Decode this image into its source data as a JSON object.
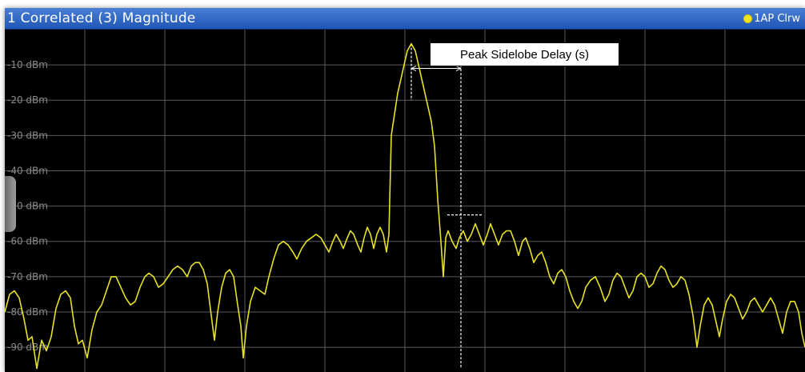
{
  "window": {
    "title": "1 Correlated (3) Magnitude",
    "trace_label": "1AP Clrw"
  },
  "annotation": {
    "label": "Peak Sidelobe Delay (s)"
  },
  "colors": {
    "trace": "#e6e225",
    "titlebar": "#2a62c4",
    "grid": "#5a5a5a",
    "background": "#000000"
  },
  "chart_data": {
    "type": "line",
    "title": "1 Correlated (3) Magnitude",
    "xlabel": "",
    "ylabel": "",
    "y_unit": "dBm",
    "ylim": [
      -97,
      0
    ],
    "xlim": [
      0,
      100
    ],
    "y_ticks": [
      "-10 dBm",
      "-20 dBm",
      "-30 dBm",
      "-40 dBm",
      "-50 dBm",
      "-60 dBm",
      "-70 dBm",
      "-80 dBm",
      "-90 dBm"
    ],
    "y_tick_values": [
      -10,
      -20,
      -30,
      -40,
      -50,
      -60,
      -70,
      -80,
      -90
    ],
    "grid": true,
    "series": [
      {
        "name": "1AP Clrw",
        "points": [
          [
            0.0,
            -80
          ],
          [
            0.6,
            -75
          ],
          [
            1.2,
            -74
          ],
          [
            1.8,
            -76
          ],
          [
            2.4,
            -82
          ],
          [
            2.9,
            -88
          ],
          [
            3.4,
            -87
          ],
          [
            4.0,
            -96
          ],
          [
            4.6,
            -88
          ],
          [
            5.2,
            -91
          ],
          [
            5.8,
            -87
          ],
          [
            6.4,
            -79
          ],
          [
            7.0,
            -75
          ],
          [
            7.6,
            -74
          ],
          [
            8.2,
            -76
          ],
          [
            8.7,
            -84
          ],
          [
            9.2,
            -89
          ],
          [
            9.7,
            -88
          ],
          [
            10.3,
            -93
          ],
          [
            10.9,
            -85
          ],
          [
            11.5,
            -80
          ],
          [
            12.1,
            -78
          ],
          [
            12.7,
            -74
          ],
          [
            13.3,
            -70
          ],
          [
            13.9,
            -70
          ],
          [
            14.5,
            -73
          ],
          [
            15.1,
            -76
          ],
          [
            15.7,
            -78
          ],
          [
            16.3,
            -77
          ],
          [
            16.9,
            -73
          ],
          [
            17.5,
            -70
          ],
          [
            18.0,
            -69
          ],
          [
            18.6,
            -70
          ],
          [
            19.2,
            -73
          ],
          [
            19.8,
            -72
          ],
          [
            20.4,
            -70
          ],
          [
            21.0,
            -68
          ],
          [
            21.6,
            -67
          ],
          [
            22.2,
            -68
          ],
          [
            22.8,
            -70
          ],
          [
            23.3,
            -67
          ],
          [
            23.8,
            -66
          ],
          [
            24.3,
            -66
          ],
          [
            24.8,
            -68
          ],
          [
            25.3,
            -72
          ],
          [
            25.8,
            -81
          ],
          [
            26.2,
            -88
          ],
          [
            26.6,
            -80
          ],
          [
            27.1,
            -73
          ],
          [
            27.6,
            -69
          ],
          [
            28.1,
            -68
          ],
          [
            28.6,
            -70
          ],
          [
            29.1,
            -78
          ],
          [
            29.5,
            -84
          ],
          [
            29.8,
            -93
          ],
          [
            30.2,
            -84
          ],
          [
            30.7,
            -77
          ],
          [
            31.3,
            -73
          ],
          [
            31.9,
            -74
          ],
          [
            32.5,
            -75
          ],
          [
            33.0,
            -70
          ],
          [
            33.6,
            -65
          ],
          [
            34.2,
            -61
          ],
          [
            34.8,
            -60
          ],
          [
            35.4,
            -61
          ],
          [
            36.0,
            -63
          ],
          [
            36.5,
            -65
          ],
          [
            37.1,
            -62
          ],
          [
            37.7,
            -60
          ],
          [
            38.3,
            -59
          ],
          [
            38.9,
            -58
          ],
          [
            39.5,
            -59
          ],
          [
            40.0,
            -61
          ],
          [
            40.5,
            -63
          ],
          [
            41.0,
            -60
          ],
          [
            41.4,
            -58
          ],
          [
            41.9,
            -60
          ],
          [
            42.3,
            -62
          ],
          [
            42.8,
            -59
          ],
          [
            43.2,
            -57
          ],
          [
            43.6,
            -58
          ],
          [
            44.1,
            -61
          ],
          [
            44.5,
            -63
          ],
          [
            44.9,
            -59
          ],
          [
            45.3,
            -56
          ],
          [
            45.7,
            -58
          ],
          [
            46.1,
            -62
          ],
          [
            46.5,
            -58
          ],
          [
            46.9,
            -56
          ],
          [
            47.3,
            -58
          ],
          [
            47.7,
            -63
          ],
          [
            48.0,
            -58
          ],
          [
            48.3,
            -30
          ],
          [
            48.7,
            -24
          ],
          [
            49.1,
            -18
          ],
          [
            49.5,
            -14
          ],
          [
            49.9,
            -10
          ],
          [
            50.3,
            -6
          ],
          [
            50.8,
            -4
          ],
          [
            51.3,
            -6
          ],
          [
            51.7,
            -10
          ],
          [
            52.1,
            -14
          ],
          [
            52.5,
            -18
          ],
          [
            52.9,
            -22
          ],
          [
            53.3,
            -26
          ],
          [
            53.7,
            -33
          ],
          [
            54.1,
            -48
          ],
          [
            54.5,
            -60
          ],
          [
            54.8,
            -70
          ],
          [
            55.1,
            -59
          ],
          [
            55.4,
            -57
          ],
          [
            55.9,
            -60
          ],
          [
            56.4,
            -62
          ],
          [
            56.8,
            -59
          ],
          [
            57.3,
            -57
          ],
          [
            57.8,
            -60
          ],
          [
            58.3,
            -58
          ],
          [
            58.8,
            -55
          ],
          [
            59.3,
            -58
          ],
          [
            59.8,
            -61
          ],
          [
            60.3,
            -58
          ],
          [
            60.7,
            -55
          ],
          [
            61.2,
            -58
          ],
          [
            61.7,
            -61
          ],
          [
            62.2,
            -58
          ],
          [
            62.7,
            -57
          ],
          [
            63.2,
            -57
          ],
          [
            63.7,
            -60
          ],
          [
            64.2,
            -64
          ],
          [
            64.7,
            -60
          ],
          [
            65.1,
            -59
          ],
          [
            65.6,
            -62
          ],
          [
            66.1,
            -66
          ],
          [
            66.6,
            -64
          ],
          [
            67.1,
            -63
          ],
          [
            67.6,
            -66
          ],
          [
            68.1,
            -70
          ],
          [
            68.6,
            -72
          ],
          [
            69.1,
            -69
          ],
          [
            69.6,
            -68
          ],
          [
            70.1,
            -70
          ],
          [
            70.6,
            -74
          ],
          [
            71.1,
            -77
          ],
          [
            71.6,
            -79
          ],
          [
            72.1,
            -77
          ],
          [
            72.6,
            -73
          ],
          [
            73.2,
            -71
          ],
          [
            73.8,
            -70
          ],
          [
            74.4,
            -73
          ],
          [
            75.0,
            -77
          ],
          [
            75.5,
            -75
          ],
          [
            76.0,
            -71
          ],
          [
            76.5,
            -69
          ],
          [
            77.0,
            -70
          ],
          [
            77.5,
            -73
          ],
          [
            78.0,
            -76
          ],
          [
            78.5,
            -74
          ],
          [
            79.0,
            -70
          ],
          [
            79.5,
            -69
          ],
          [
            80.0,
            -70
          ],
          [
            80.5,
            -73
          ],
          [
            81.0,
            -72
          ],
          [
            81.5,
            -69
          ],
          [
            82.0,
            -67
          ],
          [
            82.5,
            -68
          ],
          [
            83.0,
            -71
          ],
          [
            83.5,
            -73
          ],
          [
            84.0,
            -72
          ],
          [
            84.5,
            -70
          ],
          [
            85.0,
            -71
          ],
          [
            85.5,
            -75
          ],
          [
            86.0,
            -81
          ],
          [
            86.5,
            -90
          ],
          [
            86.9,
            -84
          ],
          [
            87.4,
            -78
          ],
          [
            87.9,
            -76
          ],
          [
            88.4,
            -78
          ],
          [
            88.9,
            -83
          ],
          [
            89.3,
            -87
          ],
          [
            89.7,
            -82
          ],
          [
            90.2,
            -77
          ],
          [
            90.7,
            -75
          ],
          [
            91.2,
            -76
          ],
          [
            91.7,
            -79
          ],
          [
            92.2,
            -82
          ],
          [
            92.7,
            -80
          ],
          [
            93.2,
            -77
          ],
          [
            93.7,
            -76
          ],
          [
            94.2,
            -78
          ],
          [
            94.7,
            -80
          ],
          [
            95.2,
            -78
          ],
          [
            95.7,
            -76
          ],
          [
            96.2,
            -78
          ],
          [
            96.7,
            -82
          ],
          [
            97.2,
            -86
          ],
          [
            97.7,
            -80
          ],
          [
            98.2,
            -77
          ],
          [
            98.7,
            -77
          ],
          [
            99.2,
            -80
          ],
          [
            99.6,
            -86
          ],
          [
            100.0,
            -90
          ]
        ]
      }
    ],
    "annotations": [
      {
        "text": "Peak Sidelobe Delay (s)",
        "main_peak_x": 50.8,
        "sidelobe_x": 57.0,
        "sidelobe_level": -52.5
      }
    ]
  }
}
